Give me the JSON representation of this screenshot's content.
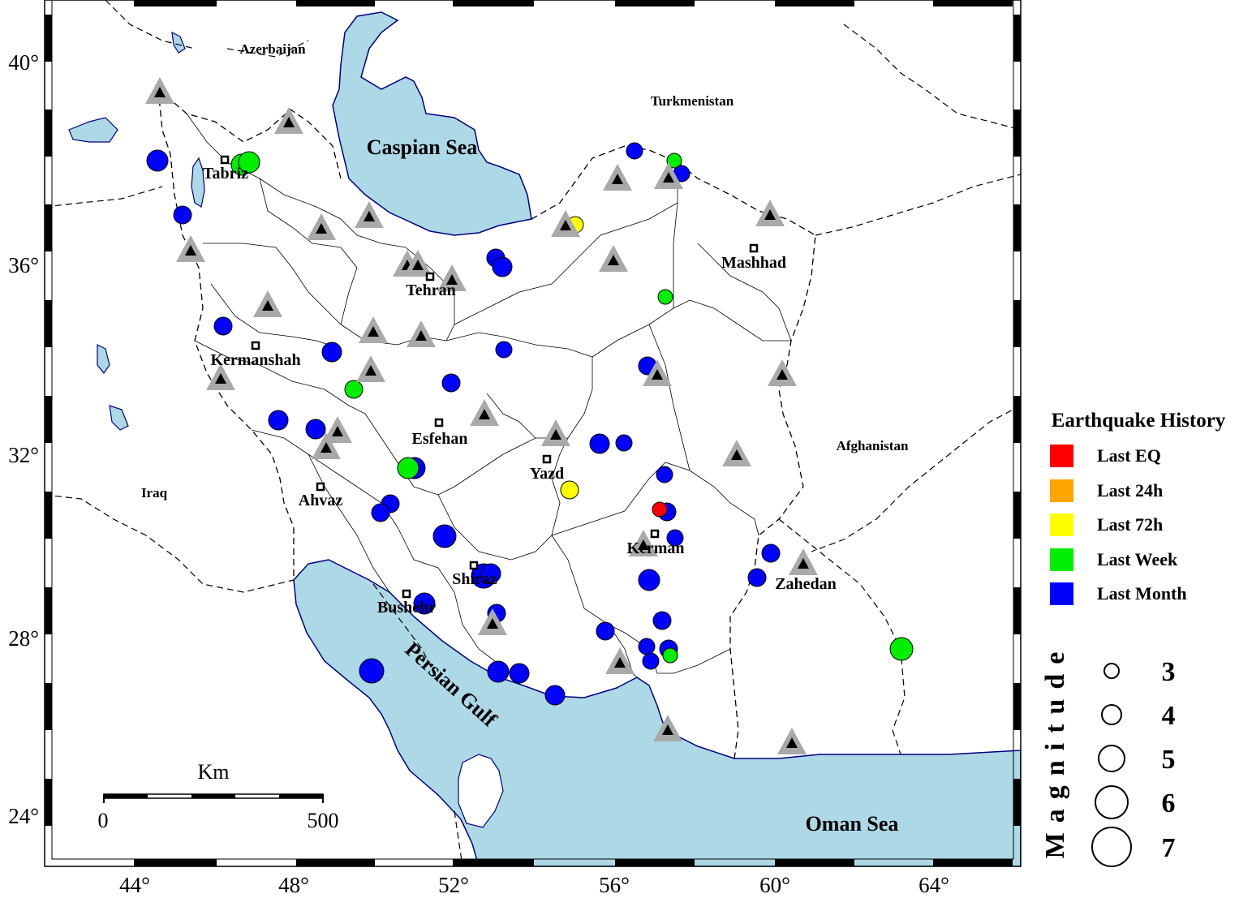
{
  "axes": {
    "lon_ticks": [
      "44°",
      "48°",
      "52°",
      "56°",
      "60°",
      "64°"
    ],
    "lat_ticks": [
      "40°",
      "36°",
      "32°",
      "28°",
      "24°"
    ]
  },
  "countries": [
    "Azerbaijan",
    "Turkmenistan",
    "Afghanistan",
    "Iraq"
  ],
  "water_bodies": [
    "Caspian Sea",
    "Persian Gulf",
    "Oman Sea"
  ],
  "cities": [
    "Tabriz",
    "Tehran",
    "Mashhad",
    "Kermanshah",
    "Esfehan",
    "Yazd",
    "Ahvaz",
    "Shiraz",
    "Kerman",
    "Zahedan",
    "Bushehr"
  ],
  "scale_bar": {
    "unit": "Km",
    "start": "0",
    "end": "500"
  },
  "legend": {
    "title": "Earthquake History",
    "items": [
      {
        "label": "Last EQ",
        "color": "#ff0000"
      },
      {
        "label": "Last 24h",
        "color": "#ffa500"
      },
      {
        "label": "Last 72h",
        "color": "#ffff00"
      },
      {
        "label": "Last Week",
        "color": "#00ee00"
      },
      {
        "label": "Last Month",
        "color": "#0000ff"
      }
    ]
  },
  "magnitude_legend": {
    "title": "Magnitude",
    "values": [
      "3",
      "4",
      "5",
      "6",
      "7"
    ]
  },
  "colors": {
    "water": "#add8e6",
    "station": "#a9a9a9",
    "coast": "#000080"
  }
}
